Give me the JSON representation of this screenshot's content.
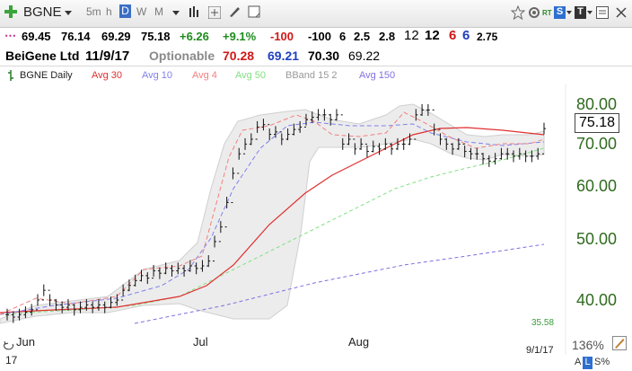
{
  "toolbar": {
    "symbol": "BGNE",
    "timeframes": [
      "5m",
      "h",
      "D",
      "W",
      "M"
    ],
    "active_timeframe": "D",
    "rt_badge": "RT",
    "s_badge": "S",
    "t_badge": "T"
  },
  "quote": {
    "last": "69.45",
    "high": "76.14",
    "low": "69.29",
    "close": "75.18",
    "change": "+6.26",
    "change_pct": "+9.1%",
    "n1": "-100",
    "n2": "-100",
    "n3": "6",
    "n4": "2.5",
    "n5": "2.8",
    "n6": "12",
    "n7": "12",
    "n8": "6",
    "n9": "6",
    "n10": "2.75"
  },
  "company": {
    "name": "BeiGene Ltd",
    "date": "11/9/17",
    "optionable": "Optionable",
    "v1": "70.28",
    "v2": "69.21",
    "v3": "70.30",
    "v4": "69.22"
  },
  "legend": {
    "daily": "BGNE Daily",
    "avg30": "Avg 30",
    "avg10": "Avg 10",
    "avg4": "Avg 4",
    "avg50": "Avg 50",
    "bband": "BBand 15 2",
    "avg150": "Avg 150"
  },
  "colors": {
    "avg30": "#e03030",
    "avg10": "#8080ee",
    "avg4": "#f08080",
    "avg50": "#80e080",
    "bband": "#aaaaaa",
    "avg150": "#8070e0",
    "price_axis": "#2f6b1e"
  },
  "price_axis": {
    "labels": [
      "80.00",
      "70.00",
      "60.00",
      "50.00",
      "40.00"
    ],
    "current": "75.18",
    "min_label": "35.58"
  },
  "months": [
    "Jun",
    "Jul",
    "Aug"
  ],
  "footer": {
    "date": "9/1/17",
    "zoom": "136%",
    "left_mark": "17",
    "a_btn": "A",
    "l_btn": "L",
    "s_pct": "S%"
  },
  "chart_data": {
    "type": "line",
    "title": "BGNE Daily",
    "series": [
      {
        "name": "Avg 30",
        "values": [
          36.5,
          37,
          38,
          39,
          40,
          42,
          45,
          50,
          55,
          60,
          64,
          67,
          69,
          71,
          72,
          72,
          71.5
        ]
      },
      {
        "name": "Avg 10",
        "values": [
          37,
          38,
          39,
          41,
          44,
          48,
          52,
          60,
          70,
          74,
          75,
          74,
          73,
          72.5,
          71,
          70,
          69.5
        ]
      },
      {
        "name": "Avg 50",
        "values": [
          36,
          36.5,
          37,
          38,
          39,
          40.5,
          42,
          44,
          47,
          50,
          53,
          56,
          59,
          62,
          64,
          66,
          68
        ]
      },
      {
        "name": "Avg 150",
        "values": [
          33,
          33.5,
          34,
          35,
          36,
          37,
          38,
          39.5,
          41,
          42.5,
          44,
          45,
          46,
          47,
          48,
          49,
          50
        ]
      }
    ],
    "ylim": [
      35,
      82
    ]
  }
}
